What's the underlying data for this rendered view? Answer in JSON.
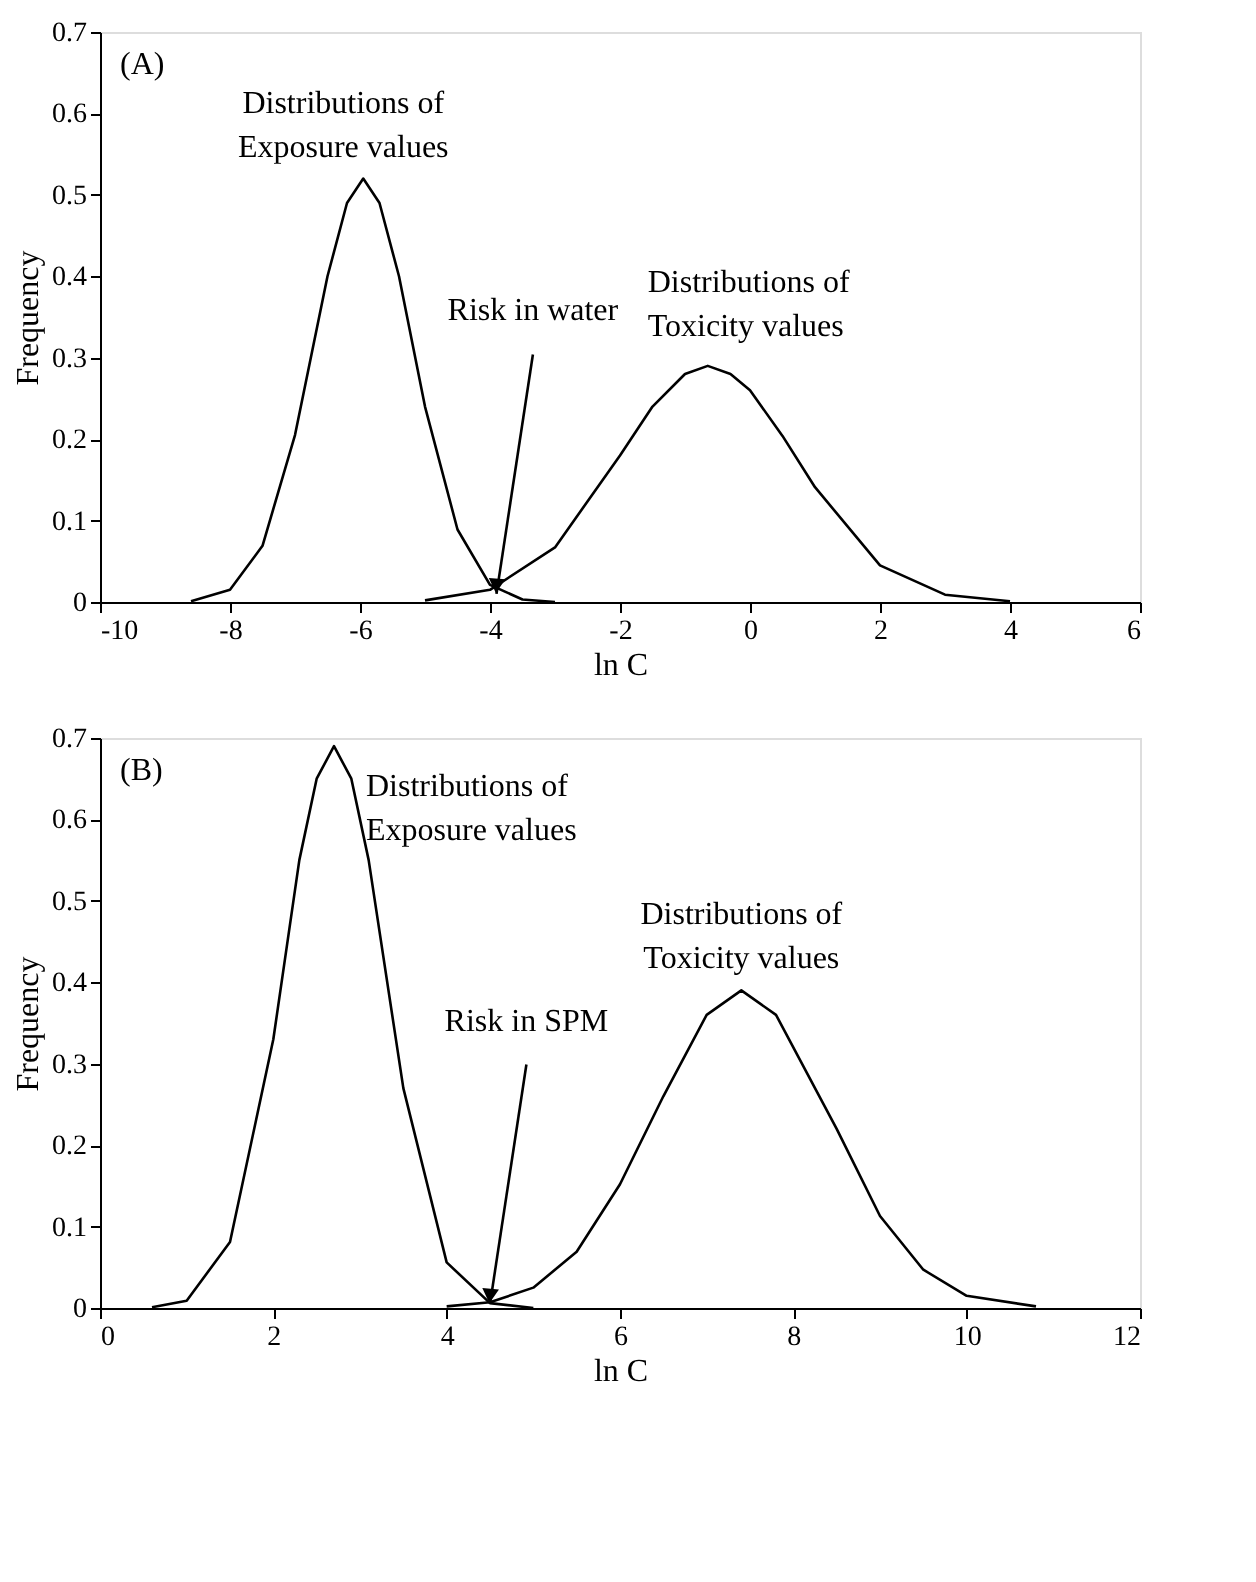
{
  "chart_data": [
    {
      "type": "line",
      "title": "(A)",
      "xlabel": "ln C",
      "ylabel": "Frequency",
      "xlim": [
        -10,
        6
      ],
      "xticks": [
        -10,
        -8,
        -6,
        -4,
        -2,
        0,
        2,
        4,
        6
      ],
      "ylim": [
        0,
        0.7
      ],
      "yticks": [
        0,
        0.1,
        0.2,
        0.3,
        0.4,
        0.5,
        0.6,
        0.7
      ],
      "grid": false,
      "legend": false,
      "marker": "none",
      "line_style": "solid",
      "series": [
        {
          "name": "Distributions of\nExposure values",
          "color": "#000000",
          "x": [
            -8.6,
            -8,
            -7.5,
            -7,
            -6.5,
            -6.2,
            -5.95,
            -5.7,
            -5.4,
            -5,
            -4.5,
            -4,
            -3.5,
            -3
          ],
          "values": [
            0.001,
            0.015,
            0.069,
            0.205,
            0.4,
            0.49,
            0.52,
            0.49,
            0.4,
            0.24,
            0.089,
            0.021,
            0.003,
            0
          ]
        },
        {
          "name": "Distributions of\nToxicity values",
          "color": "#000000",
          "x": [
            -5,
            -4,
            -3,
            -2,
            -1.5,
            -1,
            -0.65,
            -0.3,
            0,
            0.5,
            1,
            2,
            3,
            4
          ],
          "values": [
            0.002,
            0.015,
            0.067,
            0.18,
            0.24,
            0.28,
            0.29,
            0.28,
            0.26,
            0.204,
            0.141,
            0.045,
            0.009,
            0.001
          ]
        }
      ],
      "annotations": [
        {
          "text": "Risk in water",
          "x": -3.9,
          "y": 0.01
        }
      ]
    },
    {
      "type": "line",
      "title": "(B)",
      "xlabel": "ln C",
      "ylabel": "Frequency",
      "xlim": [
        0,
        12
      ],
      "xticks": [
        0,
        2,
        4,
        6,
        8,
        10,
        12
      ],
      "ylim": [
        0,
        0.7
      ],
      "yticks": [
        0,
        0.1,
        0.2,
        0.3,
        0.4,
        0.5,
        0.6,
        0.7
      ],
      "grid": false,
      "legend": false,
      "marker": "none",
      "line_style": "solid",
      "series": [
        {
          "name": "Distributions of\nExposure values",
          "color": "#000000",
          "x": [
            0.6,
            1,
            1.5,
            2,
            2.3,
            2.5,
            2.7,
            2.9,
            3.1,
            3.5,
            4,
            4.5,
            5
          ],
          "values": [
            0.001,
            0.009,
            0.081,
            0.33,
            0.55,
            0.65,
            0.69,
            0.65,
            0.55,
            0.27,
            0.056,
            0.006,
            0
          ]
        },
        {
          "name": "Distributions of\nToxicity values",
          "color": "#000000",
          "x": [
            4,
            4.5,
            5,
            5.5,
            6,
            6.5,
            7,
            7.4,
            7.8,
            8.5,
            9,
            9.5,
            10,
            10.8
          ],
          "values": [
            0.002,
            0.007,
            0.025,
            0.069,
            0.152,
            0.26,
            0.36,
            0.39,
            0.36,
            0.22,
            0.113,
            0.047,
            0.015,
            0.002
          ]
        }
      ],
      "annotations": [
        {
          "text": "Risk in SPM",
          "x": 4.5,
          "y": 0.005
        }
      ]
    }
  ]
}
